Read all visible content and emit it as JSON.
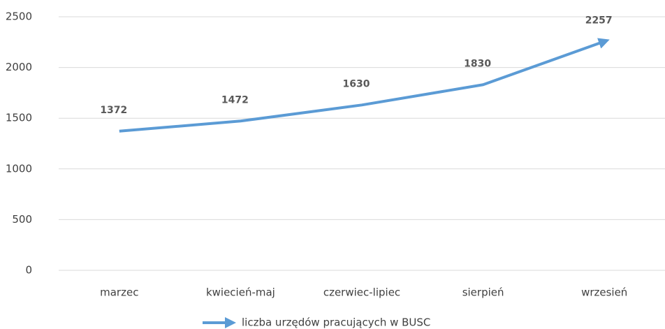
{
  "chart_data": {
    "type": "line",
    "categories": [
      "marzec",
      "kwiecień-maj",
      "czerwiec-lipiec",
      "sierpień",
      "wrzesień"
    ],
    "series": [
      {
        "name": "liczba urzędów pracujących w BUSC",
        "color": "#5b9bd5",
        "values": [
          1372,
          1472,
          1630,
          1830,
          2257
        ]
      }
    ],
    "ylim": [
      0,
      2500
    ],
    "yticks": [
      0,
      500,
      1000,
      1500,
      2000,
      2500
    ],
    "grid": true,
    "legend": "bottom",
    "data_labels": true
  }
}
